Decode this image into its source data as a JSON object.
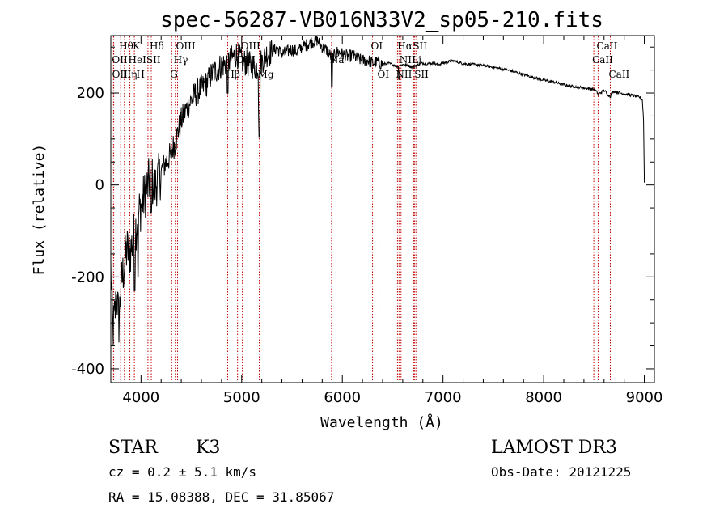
{
  "chart_data": {
    "type": "line",
    "title": "spec-56287-VB016N33V2_sp05-210.fits",
    "xlabel": "Wavelength (Å)",
    "ylabel": "Flux (relative)",
    "xlim": [
      3700,
      9100
    ],
    "ylim": [
      -430,
      325
    ],
    "xticks": [
      4000,
      5000,
      6000,
      7000,
      8000,
      9000
    ],
    "yticks": [
      -400,
      -200,
      0,
      200
    ],
    "spectrum": {
      "name": "flux",
      "noise_start_wavelength": 3700,
      "noise_end_wavelength": 6400,
      "points": [
        [
          3700,
          -180
        ],
        [
          3720,
          -320
        ],
        [
          3740,
          -280
        ],
        [
          3760,
          -240
        ],
        [
          3780,
          -300
        ],
        [
          3800,
          -220
        ],
        [
          3830,
          -180
        ],
        [
          3860,
          -140
        ],
        [
          3890,
          -150
        ],
        [
          3920,
          -120
        ],
        [
          3950,
          -90
        ],
        [
          3980,
          -60
        ],
        [
          4010,
          -40
        ],
        [
          4040,
          -20
        ],
        [
          4070,
          0
        ],
        [
          4100,
          20
        ],
        [
          4130,
          -10
        ],
        [
          4160,
          10
        ],
        [
          4190,
          20
        ],
        [
          4220,
          40
        ],
        [
          4250,
          50
        ],
        [
          4280,
          60
        ],
        [
          4310,
          80
        ],
        [
          4340,
          90
        ],
        [
          4370,
          120
        ],
        [
          4400,
          140
        ],
        [
          4450,
          165
        ],
        [
          4500,
          185
        ],
        [
          4550,
          200
        ],
        [
          4600,
          210
        ],
        [
          4650,
          220
        ],
        [
          4700,
          240
        ],
        [
          4750,
          250
        ],
        [
          4800,
          260
        ],
        [
          4850,
          265
        ],
        [
          4900,
          275
        ],
        [
          4950,
          285
        ],
        [
          5000,
          270
        ],
        [
          5050,
          265
        ],
        [
          5100,
          260
        ],
        [
          5150,
          255
        ],
        [
          5200,
          270
        ],
        [
          5250,
          285
        ],
        [
          5300,
          290
        ],
        [
          5350,
          298
        ],
        [
          5400,
          285
        ],
        [
          5450,
          290
        ],
        [
          5500,
          295
        ],
        [
          5550,
          290
        ],
        [
          5600,
          300
        ],
        [
          5650,
          305
        ],
        [
          5700,
          312
        ],
        [
          5750,
          315
        ],
        [
          5800,
          300
        ],
        [
          5850,
          292
        ],
        [
          5900,
          275
        ],
        [
          5950,
          290
        ],
        [
          6000,
          285
        ],
        [
          6050,
          280
        ],
        [
          6100,
          282
        ],
        [
          6150,
          275
        ],
        [
          6200,
          270
        ],
        [
          6250,
          272
        ],
        [
          6300,
          265
        ],
        [
          6350,
          268
        ],
        [
          6400,
          262
        ],
        [
          6450,
          265
        ],
        [
          6500,
          262
        ],
        [
          6550,
          258
        ],
        [
          6600,
          262
        ],
        [
          6650,
          260
        ],
        [
          6700,
          257
        ],
        [
          6750,
          262
        ],
        [
          6800,
          265
        ],
        [
          6850,
          264
        ],
        [
          6900,
          265
        ],
        [
          6950,
          262
        ],
        [
          7000,
          265
        ],
        [
          7050,
          268
        ],
        [
          7100,
          270
        ],
        [
          7150,
          267
        ],
        [
          7200,
          264
        ],
        [
          7300,
          262
        ],
        [
          7400,
          260
        ],
        [
          7500,
          256
        ],
        [
          7600,
          252
        ],
        [
          7700,
          247
        ],
        [
          7800,
          240
        ],
        [
          7900,
          234
        ],
        [
          8000,
          228
        ],
        [
          8100,
          224
        ],
        [
          8200,
          218
        ],
        [
          8300,
          214
        ],
        [
          8400,
          211
        ],
        [
          8500,
          208
        ],
        [
          8550,
          198
        ],
        [
          8600,
          206
        ],
        [
          8650,
          194
        ],
        [
          8700,
          204
        ],
        [
          8800,
          198
        ],
        [
          8900,
          194
        ],
        [
          8960,
          190
        ],
        [
          8980,
          185
        ],
        [
          8995,
          130
        ],
        [
          9000,
          5
        ]
      ],
      "absorption_features": [
        [
          3935,
          -230
        ],
        [
          3970,
          -200
        ],
        [
          4100,
          -60
        ],
        [
          4300,
          60
        ],
        [
          4861,
          200
        ],
        [
          5170,
          150
        ],
        [
          5175,
          105
        ],
        [
          5895,
          215
        ],
        [
          6563,
          230
        ],
        [
          8542,
          195
        ],
        [
          8662,
          190
        ]
      ]
    },
    "lines": [
      {
        "name": "Hθ",
        "wavelength": 3798,
        "row": 1
      },
      {
        "name": "K",
        "wavelength": 3934,
        "row": 1
      },
      {
        "name": "Hδ",
        "wavelength": 4102,
        "row": 1
      },
      {
        "name": "OII",
        "wavelength": 3727,
        "row": 2
      },
      {
        "name": "HeI",
        "wavelength": 3889,
        "row": 2
      },
      {
        "name": "SII",
        "wavelength": 4069,
        "row": 2
      },
      {
        "name": "OII",
        "wavelength": 3729,
        "row": 3
      },
      {
        "name": "Hη",
        "wavelength": 3835,
        "row": 3
      },
      {
        "name": "H",
        "wavelength": 3969,
        "row": 3
      },
      {
        "name": "OIII",
        "wavelength": 4363,
        "row": 1
      },
      {
        "name": "Hγ",
        "wavelength": 4341,
        "row": 2
      },
      {
        "name": "G",
        "wavelength": 4305,
        "row": 3
      },
      {
        "name": "OIII",
        "wavelength": 5007,
        "row": 1
      },
      {
        "name": "OIII",
        "wavelength": 4959,
        "row": 2
      },
      {
        "name": "Hβ",
        "wavelength": 4861,
        "row": 3
      },
      {
        "name": "Mg",
        "wavelength": 5175,
        "row": 3
      },
      {
        "name": "Na",
        "wavelength": 5893,
        "row": 2
      },
      {
        "name": "OI",
        "wavelength": 6300,
        "row": 1
      },
      {
        "name": "OI",
        "wavelength": 6364,
        "row": 3
      },
      {
        "name": "Hα",
        "wavelength": 6563,
        "row": 1
      },
      {
        "name": "SII",
        "wavelength": 6716,
        "row": 1
      },
      {
        "name": "NII",
        "wavelength": 6583,
        "row": 2
      },
      {
        "name": "Li",
        "wavelength": 6708,
        "row": 2
      },
      {
        "name": "NII",
        "wavelength": 6548,
        "row": 3
      },
      {
        "name": "SII",
        "wavelength": 6731,
        "row": 3
      },
      {
        "name": "CaII",
        "wavelength": 8542,
        "row": 1
      },
      {
        "name": "CaII",
        "wavelength": 8498,
        "row": 2
      },
      {
        "name": "CaII",
        "wavelength": 8662,
        "row": 3
      }
    ]
  },
  "info": {
    "class": "STAR",
    "subclass": "K3",
    "survey": "LAMOST DR3",
    "cz": "cz = 0.2 ± 5.1 km/s",
    "obs_date": "Obs-Date: 20121225",
    "coords": "RA =  15.08388, DEC =  31.85067"
  }
}
